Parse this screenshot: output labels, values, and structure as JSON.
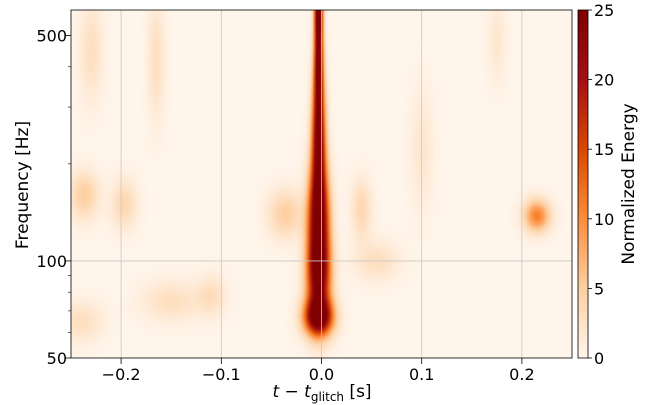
{
  "chart_data": {
    "type": "heatmap",
    "title": "",
    "xlabel": {
      "main": "t − t",
      "sub": "glitch",
      "unit": " [s]"
    },
    "ylabel": "Frequency [Hz]",
    "colorbar_label": "Normalized Energy",
    "xlim": [
      -0.25,
      0.25
    ],
    "ylim": [
      50,
      600
    ],
    "y_scale": "log",
    "x_ticks": [
      -0.2,
      -0.1,
      0.0,
      0.1,
      0.2
    ],
    "x_tick_labels": [
      "−0.2",
      "−0.1",
      "0.0",
      "0.1",
      "0.2"
    ],
    "y_ticks": [
      50,
      100,
      500
    ],
    "y_tick_labels": [
      "50",
      "100",
      "500"
    ],
    "y_minor_ticks": [
      60,
      70,
      80,
      90,
      200,
      300,
      400
    ],
    "colorbar_range": [
      0,
      25
    ],
    "colorbar_ticks": [
      0,
      5,
      10,
      15,
      20,
      25
    ],
    "colormap": [
      "#fff5eb",
      "#fdd0a2",
      "#fd8d3c",
      "#d94801",
      "#a50f15",
      "#7f0000"
    ],
    "grid": true,
    "blobs": [
      {
        "t": -0.003,
        "f": 67,
        "e": 24,
        "st": 0.01,
        "sf": 0.09
      },
      {
        "t": -0.003,
        "f": 90,
        "e": 25,
        "st": 0.008,
        "sf": 0.22
      },
      {
        "t": -0.003,
        "f": 140,
        "e": 25,
        "st": 0.007,
        "sf": 0.25
      },
      {
        "t": -0.003,
        "f": 240,
        "e": 25,
        "st": 0.0045,
        "sf": 0.3
      },
      {
        "t": -0.003,
        "f": 430,
        "e": 25,
        "st": 0.003,
        "sf": 0.25
      },
      {
        "t": -0.003,
        "f": 600,
        "e": 25,
        "st": 0.0025,
        "sf": 0.12
      },
      {
        "t": 0.215,
        "f": 138,
        "e": 11,
        "st": 0.009,
        "sf": 0.08
      },
      {
        "t": -0.237,
        "f": 160,
        "e": 5,
        "st": 0.01,
        "sf": 0.12
      },
      {
        "t": -0.197,
        "f": 150,
        "e": 4,
        "st": 0.009,
        "sf": 0.12
      },
      {
        "t": -0.036,
        "f": 140,
        "e": 5,
        "st": 0.012,
        "sf": 0.12
      },
      {
        "t": 0.04,
        "f": 145,
        "e": 4,
        "st": 0.007,
        "sf": 0.15
      },
      {
        "t": 0.055,
        "f": 100,
        "e": 3,
        "st": 0.015,
        "sf": 0.1
      },
      {
        "t": -0.165,
        "f": 420,
        "e": 3,
        "st": 0.006,
        "sf": 0.3
      },
      {
        "t": -0.23,
        "f": 450,
        "e": 3,
        "st": 0.008,
        "sf": 0.25
      },
      {
        "t": -0.15,
        "f": 75,
        "e": 3,
        "st": 0.02,
        "sf": 0.1
      },
      {
        "t": -0.11,
        "f": 78,
        "e": 3,
        "st": 0.01,
        "sf": 0.1
      },
      {
        "t": -0.24,
        "f": 65,
        "e": 3,
        "st": 0.015,
        "sf": 0.1
      },
      {
        "t": 0.1,
        "f": 220,
        "e": 2,
        "st": 0.008,
        "sf": 0.3
      },
      {
        "t": 0.175,
        "f": 480,
        "e": 2,
        "st": 0.006,
        "sf": 0.2
      }
    ]
  }
}
